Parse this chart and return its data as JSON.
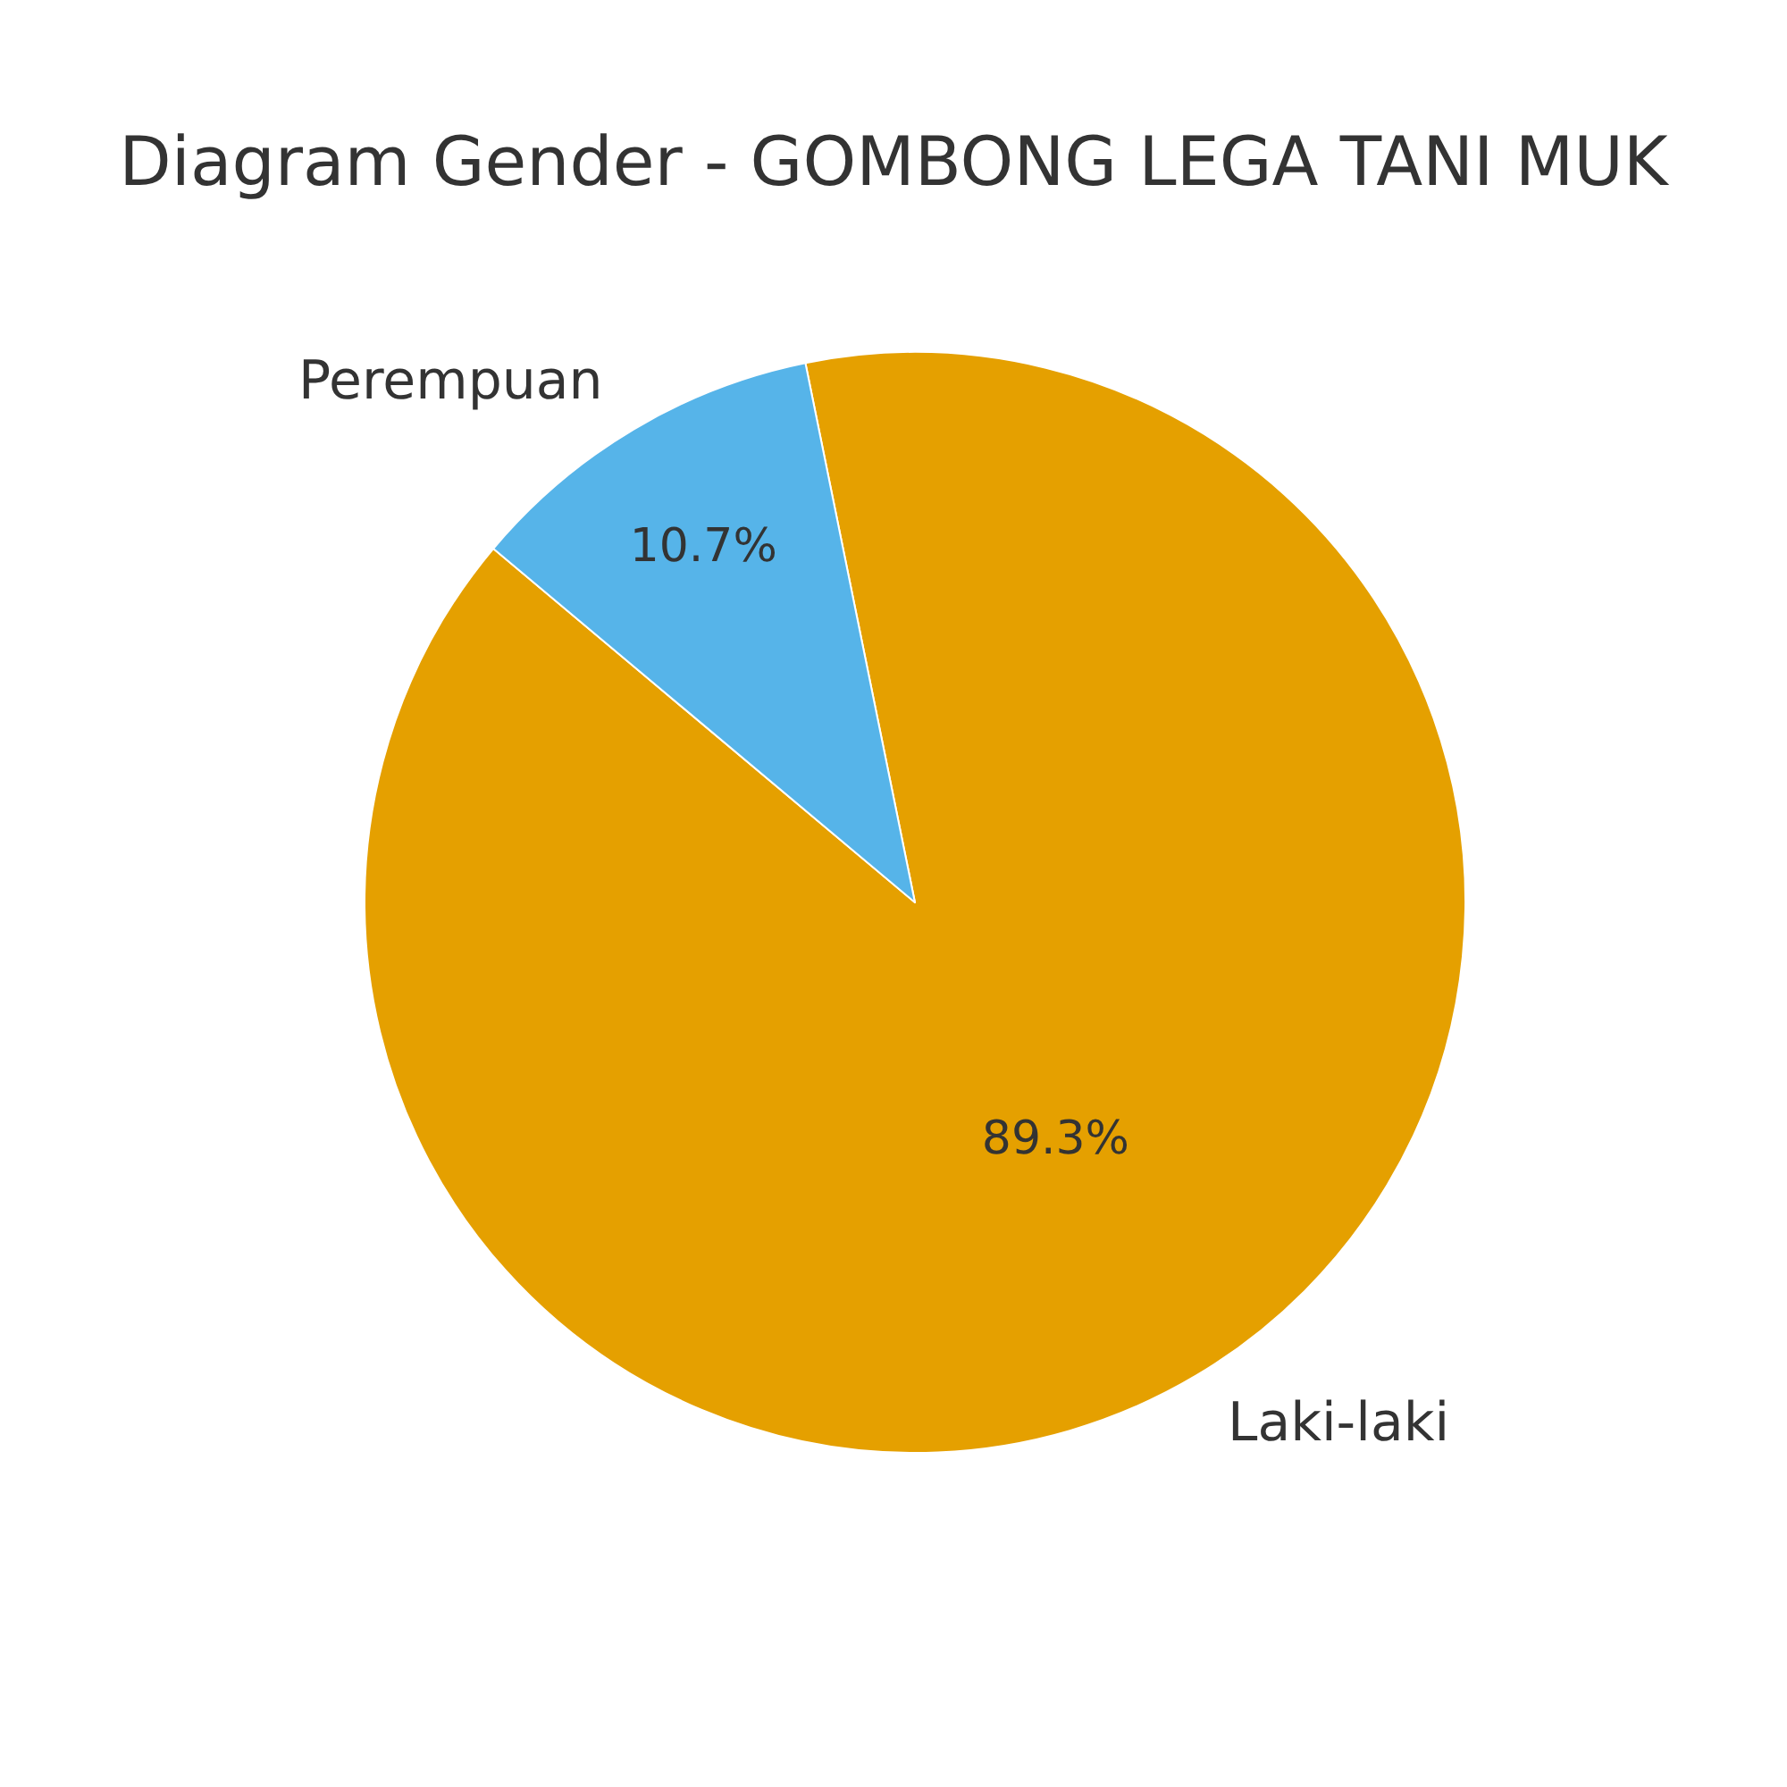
{
  "chart_data": {
    "type": "pie",
    "title": "Diagram Gender - GOMBONG LEGA TANI MUK",
    "categories": [
      "Laki-laki",
      "Perempuan"
    ],
    "values": [
      89.3,
      10.7
    ],
    "colors": [
      "#e5a000",
      "#56b4e9"
    ],
    "value_labels": [
      "89.3%",
      "10.7%"
    ]
  }
}
